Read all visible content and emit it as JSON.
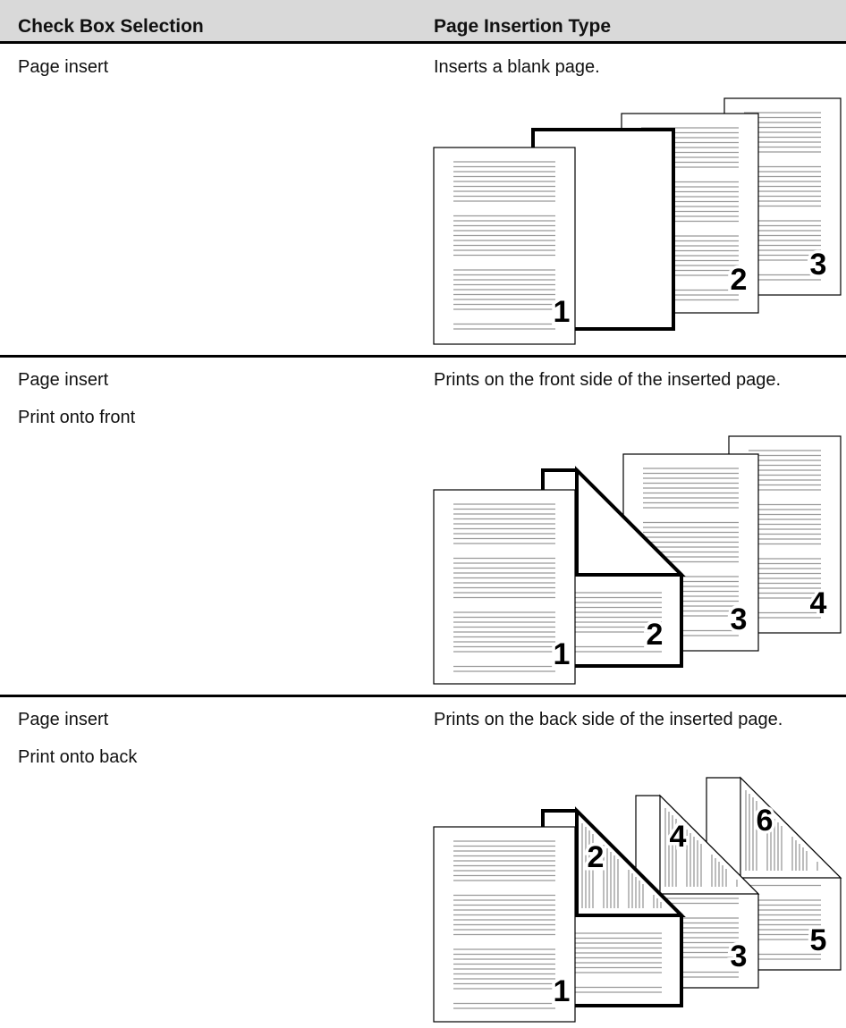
{
  "header": {
    "col1": "Check Box Selection",
    "col2": "Page Insertion Type"
  },
  "rows": [
    {
      "selection": [
        "Page insert"
      ],
      "description": "Inserts a blank page.",
      "figure_labels": [
        "1",
        "2",
        "3"
      ]
    },
    {
      "selection": [
        "Page insert",
        "Print onto front"
      ],
      "description": "Prints on the front side of the inserted page.",
      "figure_labels": [
        "1",
        "2",
        "3",
        "4"
      ]
    },
    {
      "selection": [
        "Page insert",
        "Print onto back"
      ],
      "description": "Prints on the back side of the inserted page.",
      "figure_labels": [
        "1",
        "2",
        "3",
        "4",
        "5",
        "6"
      ]
    }
  ]
}
